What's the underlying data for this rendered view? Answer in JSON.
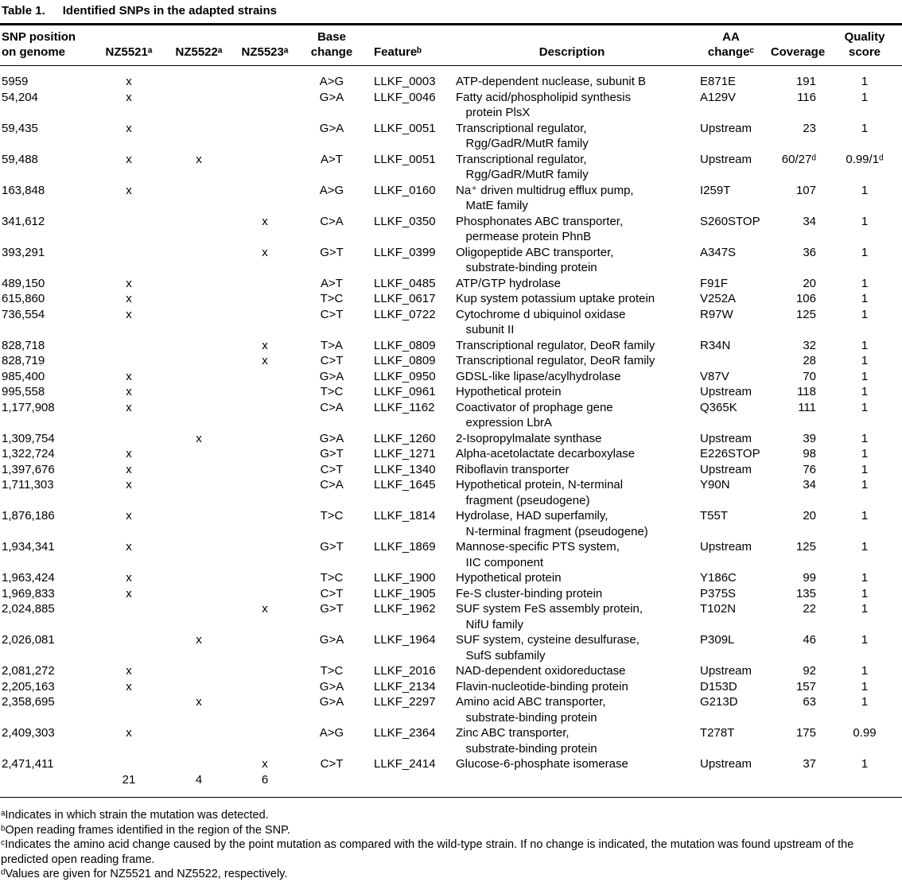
{
  "title": {
    "label": "Table 1.",
    "text": "Identified SNPs in the adapted strains"
  },
  "table": {
    "headers": [
      "SNP position\non genome",
      "NZ5521ᵃ",
      "NZ5522ᵃ",
      "NZ5523ᵃ",
      "Base\nchange",
      "Featureᵇ",
      "Description",
      "AA\nchangeᶜ",
      "Coverage",
      "Quality\nscore"
    ],
    "rows": [
      [
        "5959",
        "x",
        "",
        "",
        "A>G",
        "LLKF_0003",
        "ATP-dependent nuclease, subunit B",
        "E871E",
        "191",
        "1"
      ],
      [
        "54,204",
        "x",
        "",
        "",
        "G>A",
        "LLKF_0046",
        "Fatty acid/phospholipid synthesis\n   protein PlsX",
        "A129V",
        "116",
        "1"
      ],
      [
        "59,435",
        "x",
        "",
        "",
        "G>A",
        "LLKF_0051",
        "Transcriptional regulator,\n   Rgg/GadR/MutR family",
        "Upstream",
        "23",
        "1"
      ],
      [
        "59,488",
        "x",
        "x",
        "",
        "A>T",
        "LLKF_0051",
        "Transcriptional regulator,\n   Rgg/GadR/MutR family",
        "Upstream",
        "60/27ᵈ",
        "0.99/1ᵈ"
      ],
      [
        "163,848",
        "x",
        "",
        "",
        "A>G",
        "LLKF_0160",
        "Na⁺ driven multidrug efflux pump,\n   MatE family",
        "I259T",
        "107",
        "1"
      ],
      [
        "341,612",
        "",
        "",
        "x",
        "C>A",
        "LLKF_0350",
        "Phosphonates ABC transporter,\n   permease protein PhnB",
        "S260STOP",
        "34",
        "1"
      ],
      [
        "393,291",
        "",
        "",
        "x",
        "G>T",
        "LLKF_0399",
        "Oligopeptide ABC transporter,\n   substrate-binding protein",
        "A347S",
        "36",
        "1"
      ],
      [
        "489,150",
        "x",
        "",
        "",
        "A>T",
        "LLKF_0485",
        "ATP/GTP hydrolase",
        "F91F",
        "20",
        "1"
      ],
      [
        "615,860",
        "x",
        "",
        "",
        "T>C",
        "LLKF_0617",
        "Kup system potassium uptake protein",
        "V252A",
        "106",
        "1"
      ],
      [
        "736,554",
        "x",
        "",
        "",
        "C>T",
        "LLKF_0722",
        "Cytochrome d ubiquinol oxidase\n   subunit II",
        "R97W",
        "125",
        "1"
      ],
      [
        "828,718",
        "",
        "",
        "x",
        "T>A",
        "LLKF_0809",
        "Transcriptional regulator, DeoR family",
        "R34N",
        "32",
        "1"
      ],
      [
        "828,719",
        "",
        "",
        "x",
        "C>T",
        "LLKF_0809",
        "Transcriptional regulator, DeoR family",
        "",
        "28",
        "1"
      ],
      [
        "985,400",
        "x",
        "",
        "",
        "G>A",
        "LLKF_0950",
        "GDSL-like lipase/acylhydrolase",
        "V87V",
        "70",
        "1"
      ],
      [
        "995,558",
        "x",
        "",
        "",
        "T>C",
        "LLKF_0961",
        "Hypothetical protein",
        "Upstream",
        "118",
        "1"
      ],
      [
        "1,177,908",
        "x",
        "",
        "",
        "C>A",
        "LLKF_1162",
        "Coactivator of prophage gene\n   expression LbrA",
        "Q365K",
        "111",
        "1"
      ],
      [
        "1,309,754",
        "",
        "x",
        "",
        "G>A",
        "LLKF_1260",
        "2-Isopropylmalate synthase",
        "Upstream",
        "39",
        "1"
      ],
      [
        "1,322,724",
        "x",
        "",
        "",
        "G>T",
        "LLKF_1271",
        "Alpha-acetolactate decarboxylase",
        "E226STOP",
        "98",
        "1"
      ],
      [
        "1,397,676",
        "x",
        "",
        "",
        "C>T",
        "LLKF_1340",
        "Riboflavin transporter",
        "Upstream",
        "76",
        "1"
      ],
      [
        "1,711,303",
        "x",
        "",
        "",
        "C>A",
        "LLKF_1645",
        "Hypothetical protein, N-terminal\n   fragment (pseudogene)",
        "Y90N",
        "34",
        "1"
      ],
      [
        "1,876,186",
        "x",
        "",
        "",
        "T>C",
        "LLKF_1814",
        "Hydrolase, HAD superfamily,\n   N-terminal fragment (pseudogene)",
        "T55T",
        "20",
        "1"
      ],
      [
        "1,934,341",
        "x",
        "",
        "",
        "G>T",
        "LLKF_1869",
        "Mannose-specific PTS system,\n   IIC component",
        "Upstream",
        "125",
        "1"
      ],
      [
        "1,963,424",
        "x",
        "",
        "",
        "T>C",
        "LLKF_1900",
        "Hypothetical protein",
        "Y186C",
        "99",
        "1"
      ],
      [
        "1,969,833",
        "x",
        "",
        "",
        "C>T",
        "LLKF_1905",
        "Fe-S cluster-binding protein",
        "P375S",
        "135",
        "1"
      ],
      [
        "2,024,885",
        "",
        "",
        "x",
        "G>T",
        "LLKF_1962",
        "SUF system FeS assembly protein,\n   NifU family",
        "T102N",
        "22",
        "1"
      ],
      [
        "2,026,081",
        "",
        "x",
        "",
        "G>A",
        "LLKF_1964",
        "SUF system, cysteine desulfurase,\n   SufS subfamily",
        "P309L",
        "46",
        "1"
      ],
      [
        "2,081,272",
        "x",
        "",
        "",
        "T>C",
        "LLKF_2016",
        "NAD-dependent oxidoreductase",
        "Upstream",
        "92",
        "1"
      ],
      [
        "2,205,163",
        "x",
        "",
        "",
        "G>A",
        "LLKF_2134",
        "Flavin-nucleotide-binding protein",
        "D153D",
        "157",
        "1"
      ],
      [
        "2,358,695",
        "",
        "x",
        "",
        "G>A",
        "LLKF_2297",
        "Amino acid ABC transporter,\n   substrate-binding protein",
        "G213D",
        "63",
        "1"
      ],
      [
        "2,409,303",
        "x",
        "",
        "",
        "A>G",
        "LLKF_2364",
        "Zinc ABC transporter,\n   substrate-binding protein",
        "T278T",
        "175",
        "0.99"
      ],
      [
        "2,471,411",
        "",
        "",
        "x",
        "C>T",
        "LLKF_2414",
        "Glucose-6-phosphate isomerase",
        "Upstream",
        "37",
        "1"
      ]
    ],
    "totals": [
      "",
      "21",
      "4",
      "6",
      "",
      "",
      "",
      "",
      "",
      ""
    ]
  },
  "footnotes": [
    "ᵃIndicates in which strain the mutation was detected.",
    "ᵇOpen reading frames identified in the region of the SNP.",
    "ᶜIndicates the amino acid change caused by the point mutation as compared with the wild-type strain. If no change is indicated, the mutation was found upstream of the predicted open reading frame.",
    "ᵈValues are given for NZ5521 and NZ5522, respectively."
  ]
}
